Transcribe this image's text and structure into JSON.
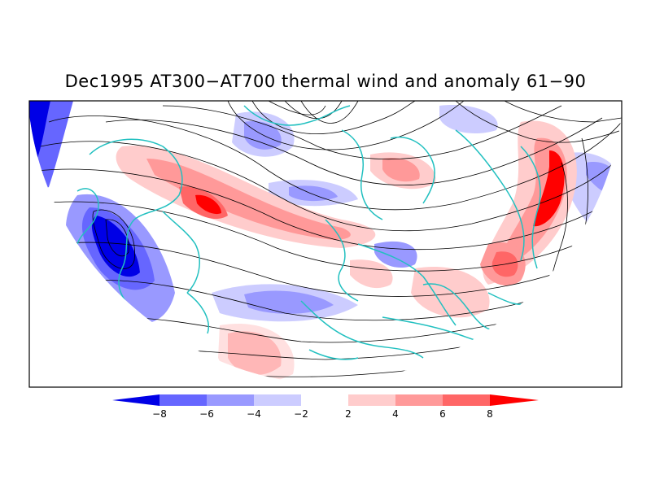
{
  "title": "Dec1995 AT300−AT700 thermal wind and anomaly 61−90",
  "colorbar": {
    "labels": [
      "−8",
      "−6",
      "−4",
      "−2",
      "2",
      "4",
      "6",
      "8"
    ],
    "colors": [
      "#0000e6",
      "#6666ff",
      "#9999ff",
      "#ccccff",
      "#ffffff",
      "#ffcccc",
      "#ff9999",
      "#ff6666",
      "#ff0000"
    ]
  },
  "colors": {
    "coastline": "#22c0c0",
    "streamline": "#000000",
    "frame": "#000000"
  }
}
